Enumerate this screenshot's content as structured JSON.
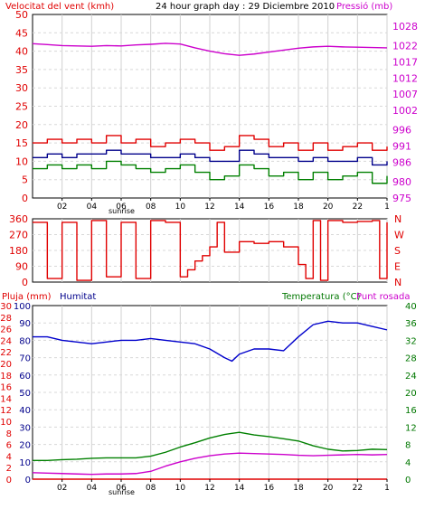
{
  "page": {
    "header_title": "24 hour graph day : 29 Diciembre 2010",
    "sunrise_label": "sunrise"
  },
  "hour_ticks": [
    "02",
    "04",
    "06",
    "08",
    "10",
    "12",
    "14",
    "16",
    "18",
    "20",
    "22",
    "1"
  ],
  "chart_data": [
    {
      "type": "line",
      "title": "24 hour graph day : 29 Diciembre 2010",
      "left_axis_label": "Velocitat del vent (kmh)",
      "right_axis_label": "Pressió (mb)",
      "left_ylim": [
        0,
        50
      ],
      "left_ticks": [
        0,
        5,
        10,
        15,
        20,
        25,
        30,
        35,
        40,
        45,
        50
      ],
      "right_ylim": [
        975,
        1031.6
      ],
      "right_ticks": [
        975,
        980,
        986,
        991,
        996,
        1002,
        1007,
        1012,
        1017,
        1022,
        1028
      ],
      "grid": true,
      "series": [
        {
          "name": "Pressió (mb)",
          "color": "#cc00cc",
          "axis": "right",
          "x": [
            0,
            1,
            2,
            3,
            4,
            5,
            6,
            7,
            8,
            9,
            10,
            11,
            12,
            13,
            14,
            15,
            16,
            17,
            18,
            19,
            20,
            21,
            22,
            23,
            24
          ],
          "y": [
            1022.6,
            1022.3,
            1022.0,
            1021.9,
            1021.8,
            1022.0,
            1021.9,
            1022.2,
            1022.4,
            1022.7,
            1022.5,
            1021.3,
            1020.3,
            1019.5,
            1019.0,
            1019.4,
            1020.0,
            1020.6,
            1021.2,
            1021.6,
            1021.8,
            1021.6,
            1021.5,
            1021.4,
            1021.3
          ]
        },
        {
          "name": "",
          "color": "#e00000",
          "axis": "left",
          "x": [
            0,
            1,
            2,
            3,
            4,
            5,
            6,
            7,
            8,
            9,
            10,
            11,
            12,
            13,
            14,
            15,
            16,
            17,
            18,
            19,
            20,
            21,
            22,
            23,
            24
          ],
          "y": [
            15,
            16,
            15,
            16,
            15,
            17,
            15,
            16,
            14,
            15,
            16,
            15,
            13,
            14,
            17,
            16,
            14,
            15,
            13,
            15,
            13,
            14,
            15,
            13,
            14
          ]
        },
        {
          "name": "",
          "color": "#00008b",
          "axis": "left",
          "x": [
            0,
            1,
            2,
            3,
            4,
            5,
            6,
            7,
            8,
            9,
            10,
            11,
            12,
            13,
            14,
            15,
            16,
            17,
            18,
            19,
            20,
            21,
            22,
            23,
            24
          ],
          "y": [
            11,
            12,
            11,
            12,
            12,
            13,
            12,
            12,
            11,
            11,
            12,
            11,
            10,
            10,
            13,
            12,
            11,
            11,
            10,
            11,
            10,
            10,
            11,
            9,
            10
          ]
        },
        {
          "name": "",
          "color": "#008000",
          "axis": "left",
          "x": [
            0,
            1,
            2,
            3,
            4,
            5,
            6,
            7,
            8,
            9,
            10,
            11,
            12,
            13,
            14,
            15,
            16,
            17,
            18,
            19,
            20,
            21,
            22,
            23,
            24
          ],
          "y": [
            8,
            9,
            8,
            9,
            8,
            10,
            9,
            8,
            7,
            8,
            9,
            7,
            5,
            6,
            9,
            8,
            6,
            7,
            5,
            7,
            5,
            6,
            7,
            4,
            6
          ]
        }
      ]
    },
    {
      "type": "line",
      "right_axis_label": "N W S E N",
      "right_labels": [
        "N",
        "W",
        "S",
        "E",
        "N"
      ],
      "left_ylim": [
        0,
        360
      ],
      "left_ticks": [
        0,
        90,
        180,
        270,
        360
      ],
      "grid": true,
      "series": [
        {
          "name": "",
          "color": "#e00000",
          "x": [
            0,
            1,
            2,
            3,
            4,
            5,
            6,
            7,
            8,
            9,
            10,
            10.5,
            11,
            11.5,
            12,
            12.5,
            13,
            14,
            15,
            16,
            17,
            18,
            18.5,
            19,
            19.5,
            20,
            21,
            22,
            23,
            23.5,
            24
          ],
          "y": [
            340,
            20,
            340,
            10,
            350,
            30,
            340,
            20,
            350,
            340,
            30,
            70,
            120,
            150,
            200,
            340,
            170,
            230,
            220,
            230,
            200,
            100,
            20,
            350,
            10,
            350,
            340,
            345,
            350,
            20,
            340
          ]
        }
      ]
    },
    {
      "type": "line",
      "left_axis_label": "Pluja (mm)",
      "humidity_label": "Humitat",
      "right_axis_label_temp": "Temperatura (°C)",
      "right_axis_label_dew": "Punt rosada",
      "rain_ylim": [
        0,
        30
      ],
      "rain_ticks": [
        0,
        2,
        4,
        6,
        8,
        10,
        12,
        14,
        16,
        18,
        20,
        22,
        24,
        26,
        28,
        30
      ],
      "humidity_ylim": [
        0,
        100
      ],
      "humidity_ticks": [
        0,
        10,
        20,
        30,
        40,
        50,
        60,
        70,
        80,
        90,
        100
      ],
      "temp_ylim": [
        0,
        40
      ],
      "temp_ticks": [
        0,
        2,
        4,
        6,
        8,
        10,
        12,
        14,
        16,
        18,
        20,
        22,
        24,
        26,
        28,
        30,
        32,
        34,
        36,
        38,
        40
      ],
      "grid": true,
      "series": [
        {
          "name": "Humitat",
          "color": "#0000cc",
          "axis": "humidity",
          "x": [
            0,
            1,
            2,
            3,
            4,
            5,
            6,
            7,
            8,
            9,
            10,
            11,
            12,
            13,
            13.5,
            14,
            15,
            16,
            17,
            18,
            19,
            20,
            21,
            22,
            23,
            24
          ],
          "y": [
            82,
            82,
            80,
            79,
            78,
            79,
            80,
            80,
            81,
            80,
            79,
            78,
            75,
            70,
            68,
            72,
            75,
            75,
            74,
            82,
            89,
            91,
            90,
            90,
            88,
            86
          ]
        },
        {
          "name": "Temperatura (°C)",
          "color": "#008000",
          "axis": "temp",
          "x": [
            0,
            1,
            2,
            3,
            4,
            5,
            6,
            7,
            8,
            9,
            10,
            11,
            12,
            13,
            14,
            15,
            16,
            17,
            18,
            19,
            20,
            21,
            22,
            23,
            24
          ],
          "y": [
            4.3,
            4.3,
            4.5,
            4.6,
            4.8,
            4.9,
            4.9,
            4.9,
            5.3,
            6.2,
            7.4,
            8.4,
            9.5,
            10.3,
            10.8,
            10.2,
            9.8,
            9.3,
            8.8,
            7.7,
            6.9,
            6.5,
            6.6,
            6.9,
            6.8
          ]
        },
        {
          "name": "Punt rosada",
          "color": "#cc00cc",
          "axis": "temp",
          "x": [
            0,
            1,
            2,
            3,
            4,
            5,
            6,
            7,
            8,
            9,
            10,
            11,
            12,
            13,
            14,
            15,
            16,
            17,
            18,
            19,
            20,
            21,
            22,
            23,
            24
          ],
          "y": [
            1.5,
            1.4,
            1.3,
            1.2,
            1.1,
            1.2,
            1.2,
            1.3,
            1.8,
            3.0,
            4.0,
            4.8,
            5.4,
            5.8,
            6.0,
            5.9,
            5.8,
            5.7,
            5.5,
            5.4,
            5.5,
            5.6,
            5.7,
            5.6,
            5.7
          ]
        },
        {
          "name": "Pluja (mm)",
          "color": "#e00000",
          "axis": "rain",
          "x": [
            0,
            24
          ],
          "y": [
            0,
            0
          ]
        }
      ]
    }
  ]
}
